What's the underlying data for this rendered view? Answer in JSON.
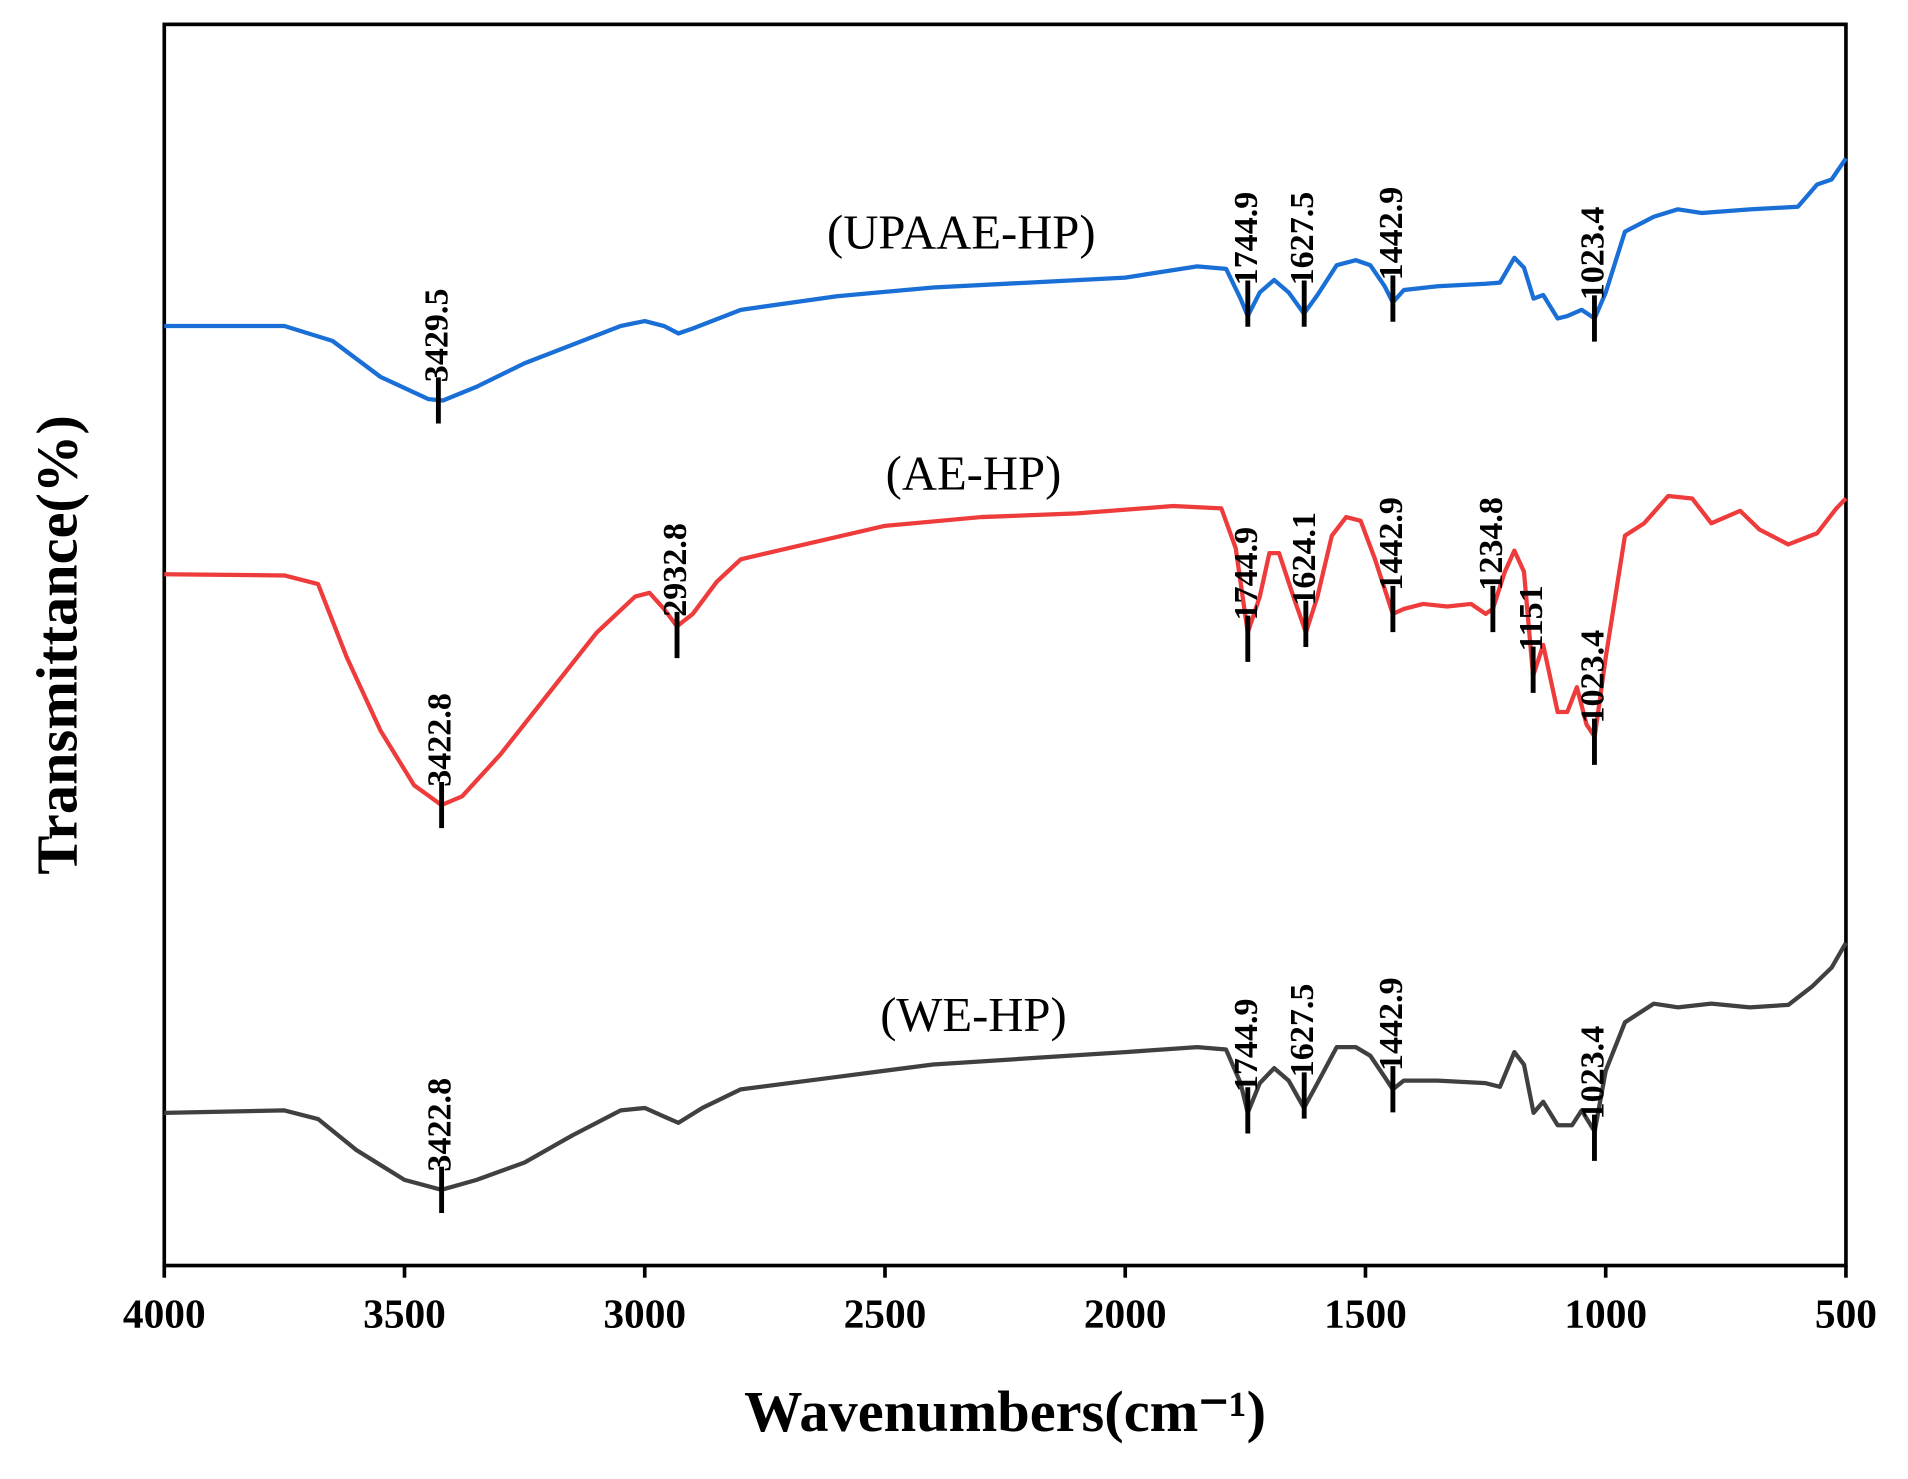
{
  "chart_data": {
    "type": "line",
    "xlabel": "Wavenumbers(cm⁻¹)",
    "ylabel": "Transmittance(%)",
    "xlim": [
      4000,
      500
    ],
    "xticks": [
      4000,
      3500,
      3000,
      2500,
      2000,
      1500,
      1000,
      500
    ],
    "ylim": [
      0,
      100
    ],
    "series": [
      {
        "name": "(UPAAE-HP)",
        "color": "#1a6fd6",
        "x": [
          4000,
          3750,
          3650,
          3550,
          3450,
          3420,
          3350,
          3250,
          3150,
          3050,
          3000,
          2960,
          2930,
          2900,
          2800,
          2600,
          2400,
          2200,
          2000,
          1850,
          1790,
          1760,
          1745,
          1720,
          1690,
          1660,
          1628,
          1600,
          1560,
          1520,
          1490,
          1460,
          1443,
          1420,
          1350,
          1250,
          1220,
          1190,
          1170,
          1150,
          1130,
          1100,
          1080,
          1050,
          1023,
          1000,
          960,
          900,
          850,
          800,
          700,
          600,
          560,
          530,
          500
        ],
        "values": [
          75.7,
          75.7,
          74.5,
          71.6,
          69.8,
          69.7,
          70.8,
          72.7,
          74.2,
          75.7,
          76.1,
          75.7,
          75.1,
          75.5,
          77.0,
          78.1,
          78.8,
          79.2,
          79.6,
          80.5,
          80.3,
          77.9,
          76.5,
          78.4,
          79.4,
          78.4,
          76.7,
          78.2,
          80.6,
          81.0,
          80.6,
          78.9,
          77.6,
          78.6,
          78.9,
          79.1,
          79.2,
          81.2,
          80.4,
          77.9,
          78.2,
          76.3,
          76.5,
          77.0,
          76.3,
          78.4,
          83.3,
          84.5,
          85.1,
          84.8,
          85.1,
          85.3,
          87.1,
          87.5,
          89.2
        ],
        "annotations": [
          {
            "text": "3429.5",
            "x": 3429.5,
            "y": 69.7
          },
          {
            "text": "1744.9",
            "x": 1744.9,
            "y": 77.5
          },
          {
            "text": "1627.5",
            "x": 1627.5,
            "y": 77.5
          },
          {
            "text": "1442.9",
            "x": 1442.9,
            "y": 77.9
          },
          {
            "text": "1023.4",
            "x": 1023.4,
            "y": 76.3
          }
        ]
      },
      {
        "name": "(AE-HP)",
        "color": "#ee3b3b",
        "x": [
          4000,
          3750,
          3680,
          3620,
          3550,
          3480,
          3423,
          3380,
          3300,
          3200,
          3100,
          3020,
          2990,
          2960,
          2933,
          2900,
          2850,
          2800,
          2700,
          2500,
          2300,
          2100,
          1900,
          1800,
          1770,
          1745,
          1720,
          1700,
          1680,
          1650,
          1624,
          1600,
          1570,
          1540,
          1510,
          1480,
          1443,
          1420,
          1380,
          1330,
          1280,
          1250,
          1235,
          1210,
          1190,
          1170,
          1151,
          1130,
          1100,
          1080,
          1060,
          1040,
          1023,
          1000,
          960,
          920,
          870,
          820,
          780,
          720,
          680,
          620,
          560,
          520,
          500
        ],
        "values": [
          55.7,
          55.6,
          54.9,
          49.0,
          43.1,
          38.7,
          37.1,
          37.8,
          41.2,
          46.1,
          51.0,
          53.9,
          54.2,
          52.9,
          51.5,
          52.5,
          55.1,
          56.9,
          57.8,
          59.6,
          60.3,
          60.6,
          61.2,
          61.0,
          57.8,
          51.0,
          53.9,
          57.4,
          57.4,
          53.9,
          51.0,
          53.9,
          58.8,
          60.3,
          60.0,
          56.9,
          52.5,
          52.9,
          53.3,
          53.1,
          53.3,
          52.5,
          52.9,
          55.9,
          57.6,
          55.9,
          47.5,
          50.0,
          44.6,
          44.6,
          46.6,
          43.6,
          42.6,
          49.0,
          58.8,
          59.8,
          62.0,
          61.8,
          59.8,
          60.8,
          59.3,
          58.1,
          59.0,
          61.0,
          61.8
        ],
        "annotations": [
          {
            "text": "3422.8",
            "x": 3422.8,
            "y": 37.1
          },
          {
            "text": "2932.8",
            "x": 2932.8,
            "y": 50.8
          },
          {
            "text": "1744.9",
            "x": 1744.9,
            "y": 50.5
          },
          {
            "text": "1624.1",
            "x": 1624.1,
            "y": 51.7
          },
          {
            "text": "1442.9",
            "x": 1442.9,
            "y": 52.9
          },
          {
            "text": "1234.8",
            "x": 1234.8,
            "y": 52.9
          },
          {
            "text": "1151",
            "x": 1151,
            "y": 48.0
          },
          {
            "text": "1023.4",
            "x": 1023.4,
            "y": 42.2
          }
        ]
      },
      {
        "name": "(WE-HP)",
        "color": "#404040",
        "x": [
          4000,
          3750,
          3680,
          3600,
          3500,
          3423,
          3350,
          3250,
          3150,
          3050,
          3000,
          2960,
          2930,
          2880,
          2800,
          2600,
          2400,
          2200,
          2000,
          1850,
          1790,
          1760,
          1745,
          1720,
          1690,
          1660,
          1628,
          1600,
          1560,
          1520,
          1490,
          1460,
          1443,
          1420,
          1350,
          1250,
          1220,
          1190,
          1170,
          1150,
          1130,
          1100,
          1070,
          1050,
          1023,
          1000,
          960,
          900,
          850,
          780,
          700,
          620,
          570,
          530,
          500
        ],
        "values": [
          12.3,
          12.5,
          11.8,
          9.3,
          6.9,
          6.1,
          6.9,
          8.3,
          10.5,
          12.5,
          12.7,
          12.0,
          11.5,
          12.7,
          14.2,
          15.2,
          16.2,
          16.7,
          17.2,
          17.6,
          17.4,
          14.7,
          12.3,
          14.7,
          15.9,
          14.9,
          12.7,
          14.7,
          17.6,
          17.6,
          16.9,
          15.2,
          14.2,
          14.9,
          14.9,
          14.7,
          14.4,
          17.2,
          16.2,
          12.3,
          13.2,
          11.3,
          11.3,
          12.5,
          10.8,
          15.7,
          19.6,
          21.1,
          20.8,
          21.1,
          20.8,
          21.0,
          22.5,
          24.0,
          26.0
        ],
        "annotations": [
          {
            "text": "3422.8",
            "x": 3422.8,
            "y": 6.1
          },
          {
            "text": "1744.9",
            "x": 1744.9,
            "y": 12.5
          },
          {
            "text": "1627.5",
            "x": 1627.5,
            "y": 13.7
          },
          {
            "text": "1442.9",
            "x": 1442.9,
            "y": 14.2
          },
          {
            "text": "1023.4",
            "x": 1023.4,
            "y": 10.3
          }
        ]
      }
    ]
  }
}
